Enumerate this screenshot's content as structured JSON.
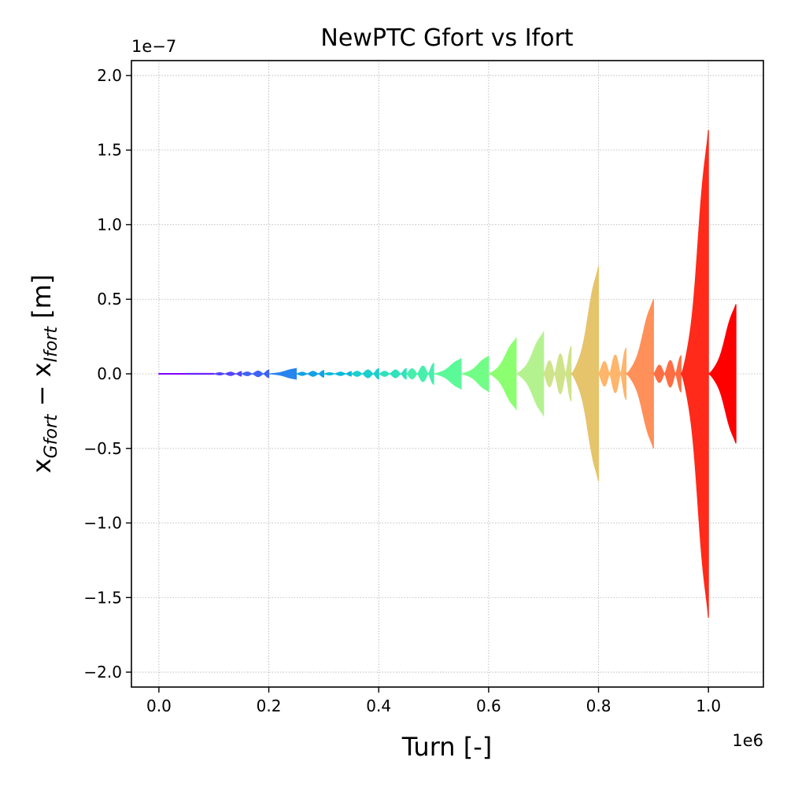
{
  "chart_data": {
    "type": "area",
    "title": "NewPTC Gfort vs Ifort",
    "xlabel": "Turn [-]",
    "ylabel": {
      "prefix": "x",
      "sub1": "Gfort",
      "minus": " − ",
      "sub2": "Ifort",
      "suffix": " [m]"
    },
    "x_offset_label": "1e6",
    "y_offset_label": "1e−7",
    "x_scale": 1000000,
    "y_scale": 1e-07,
    "xlim": [
      -50000,
      1100000
    ],
    "ylim": [
      -2.1e-07,
      2.1e-07
    ],
    "x_ticks": [
      0,
      200000,
      400000,
      600000,
      800000,
      1000000
    ],
    "x_tick_labels": [
      "0.0",
      "0.2",
      "0.4",
      "0.6",
      "0.8",
      "1.0"
    ],
    "y_ticks": [
      -2e-07,
      -1.5e-07,
      -1e-07,
      -5e-08,
      0,
      5e-08,
      1e-07,
      1.5e-07,
      2e-07
    ],
    "y_tick_labels": [
      "−2.0",
      "−1.5",
      "−1.0",
      "−0.5",
      "0.0",
      "0.5",
      "1.0",
      "1.5",
      "2.0"
    ],
    "grid": true,
    "colormap": "rainbow",
    "series": [
      {
        "x_start": 0,
        "x_end": 50000,
        "amplitude": 2e-10,
        "color": "#8000ff",
        "shape": "flat"
      },
      {
        "x_start": 50000,
        "x_end": 100000,
        "amplitude": 3e-10,
        "color": "#6a22fe",
        "shape": "flat"
      },
      {
        "x_start": 100000,
        "x_end": 150000,
        "amplitude": 1.5e-09,
        "color": "#5443fb",
        "shape": "bumps"
      },
      {
        "x_start": 150000,
        "x_end": 200000,
        "amplitude": 2.5e-09,
        "color": "#3e64f6",
        "shape": "bumps"
      },
      {
        "x_start": 200000,
        "x_end": 250000,
        "amplitude": 4.2e-09,
        "color": "#2884ee",
        "shape": "grow"
      },
      {
        "x_start": 250000,
        "x_end": 300000,
        "amplitude": 2.2e-09,
        "color": "#12a1e5",
        "shape": "bumps"
      },
      {
        "x_start": 300000,
        "x_end": 350000,
        "amplitude": 1.5e-09,
        "color": "#04b9da",
        "shape": "bumps"
      },
      {
        "x_start": 350000,
        "x_end": 400000,
        "amplitude": 3.5e-09,
        "color": "#1acfcd",
        "shape": "bumps"
      },
      {
        "x_start": 400000,
        "x_end": 450000,
        "amplitude": 3.5e-09,
        "color": "#30e1bd",
        "shape": "bumps"
      },
      {
        "x_start": 450000,
        "x_end": 500000,
        "amplitude": 7e-09,
        "color": "#46efac",
        "shape": "bumps"
      },
      {
        "x_start": 500000,
        "x_end": 550000,
        "amplitude": 1.2e-08,
        "color": "#5cf999",
        "shape": "grow"
      },
      {
        "x_start": 550000,
        "x_end": 600000,
        "amplitude": 1.4e-08,
        "color": "#72fe86",
        "shape": "grow"
      },
      {
        "x_start": 600000,
        "x_end": 650000,
        "amplitude": 2.8e-08,
        "color": "#8cff71",
        "shape": "grow"
      },
      {
        "x_start": 650000,
        "x_end": 700000,
        "amplitude": 3.3e-08,
        "color": "#b4f290",
        "shape": "grow"
      },
      {
        "x_start": 700000,
        "x_end": 750000,
        "amplitude": 1.8e-08,
        "color": "#cfe38a",
        "shape": "bumps"
      },
      {
        "x_start": 750000,
        "x_end": 800000,
        "amplitude": 8.5e-08,
        "color": "#e6c46c",
        "shape": "grow"
      },
      {
        "x_start": 800000,
        "x_end": 850000,
        "amplitude": 1.7e-08,
        "color": "#ffb56b",
        "shape": "bumps"
      },
      {
        "x_start": 850000,
        "x_end": 900000,
        "amplitude": 5.9e-08,
        "color": "#ff9059",
        "shape": "grow"
      },
      {
        "x_start": 900000,
        "x_end": 950000,
        "amplitude": 1.2e-08,
        "color": "#ff6e43",
        "shape": "bumps"
      },
      {
        "x_start": 950000,
        "x_end": 1000000,
        "amplitude": 1.93e-07,
        "color": "#ff2a1a",
        "shape": "grow"
      },
      {
        "x_start": 1000000,
        "x_end": 1050000,
        "amplitude": 5.5e-08,
        "color": "#ff0000",
        "shape": "grow"
      }
    ]
  }
}
